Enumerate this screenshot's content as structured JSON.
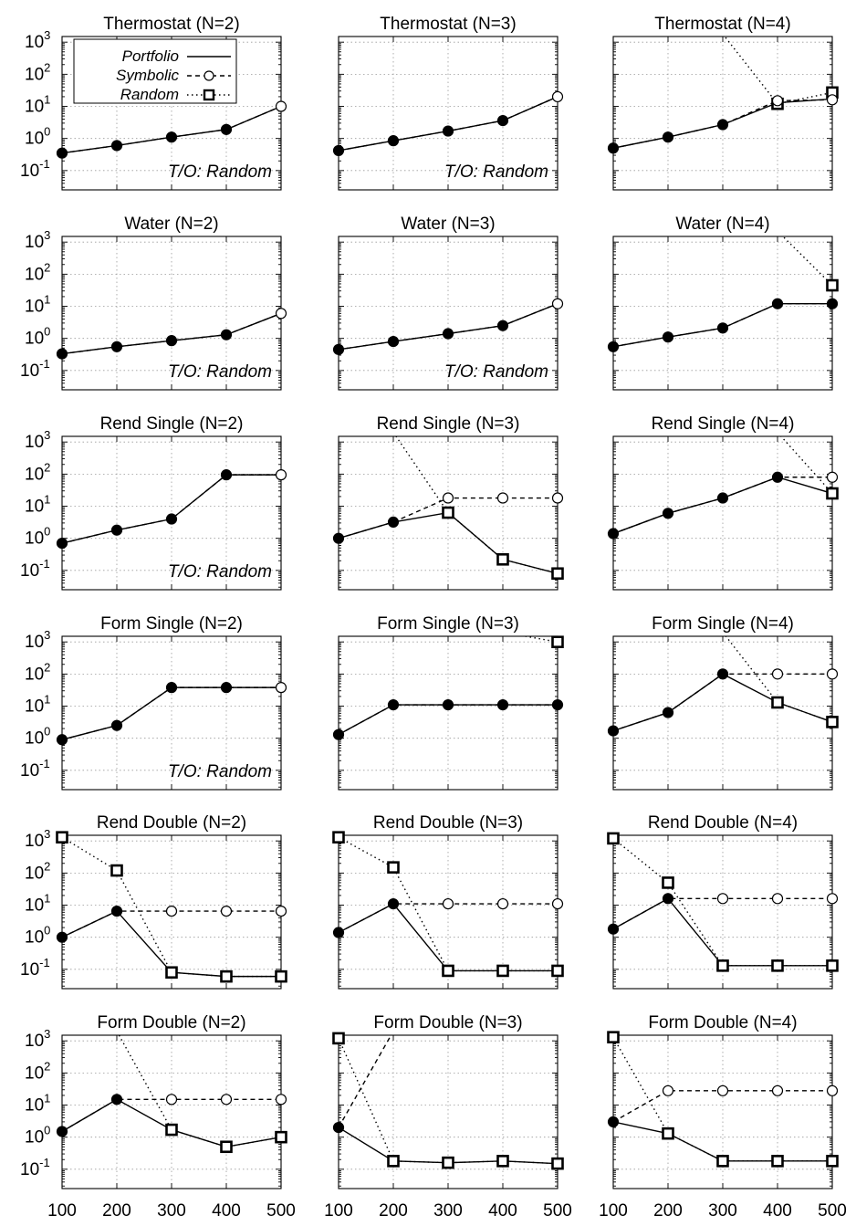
{
  "chart_data": {
    "type": "line",
    "y_scale": "log",
    "ylim": [
      0.025,
      1500
    ],
    "yticks": [
      0.1,
      1,
      10,
      100,
      1000
    ],
    "ytick_labels": [
      {
        "base": "10",
        "exp": "-1"
      },
      {
        "base": "10",
        "exp": "0"
      },
      {
        "base": "10",
        "exp": "1"
      },
      {
        "base": "10",
        "exp": "2"
      },
      {
        "base": "10",
        "exp": "3"
      }
    ],
    "x": [
      100,
      200,
      300,
      400,
      500
    ],
    "xtick_labels": [
      "100",
      "200",
      "300",
      "400",
      "500"
    ],
    "grid": true,
    "legend": {
      "placement": "top-left of first panel",
      "entries": [
        {
          "name": "Portfolio",
          "line": "solid",
          "marker": "none"
        },
        {
          "name": "Symbolic",
          "line": "dashed",
          "marker": "open circle"
        },
        {
          "name": "Random",
          "line": "dotted",
          "marker": "open square"
        }
      ]
    },
    "panels": [
      {
        "title": "Thermostat (N=2)",
        "note": "T/O: Random",
        "portfolio": [
          0.35,
          0.6,
          1.1,
          1.9,
          10
        ],
        "symbolic": [
          0.35,
          0.6,
          1.1,
          1.9,
          10
        ],
        "random": [
          null,
          null,
          null,
          null,
          null
        ]
      },
      {
        "title": "Thermostat (N=3)",
        "note": "T/O: Random",
        "portfolio": [
          0.42,
          0.85,
          1.7,
          3.6,
          20
        ],
        "symbolic": [
          0.42,
          0.85,
          1.7,
          3.6,
          20
        ],
        "random": [
          null,
          null,
          null,
          null,
          null
        ]
      },
      {
        "title": "Thermostat (N=4)",
        "note": "",
        "portfolio": [
          0.5,
          1.1,
          2.7,
          13,
          17
        ],
        "symbolic": [
          0.5,
          1.1,
          2.7,
          15,
          16
        ],
        "random": [
          null,
          null,
          1800,
          12,
          27
        ]
      },
      {
        "title": "Water (N=2)",
        "note": "T/O: Random",
        "portfolio": [
          0.33,
          0.55,
          0.85,
          1.3,
          6
        ],
        "symbolic": [
          0.33,
          0.55,
          0.85,
          1.3,
          6
        ],
        "random": [
          null,
          null,
          null,
          null,
          null
        ]
      },
      {
        "title": "Water (N=3)",
        "note": "T/O: Random",
        "portfolio": [
          0.45,
          0.8,
          1.4,
          2.5,
          12
        ],
        "symbolic": [
          0.45,
          0.8,
          1.4,
          2.5,
          12
        ],
        "random": [
          null,
          null,
          null,
          null,
          null
        ]
      },
      {
        "title": "Water (N=4)",
        "note": "",
        "portfolio": [
          0.55,
          1.1,
          2.1,
          12,
          12
        ],
        "symbolic": [
          0.55,
          1.1,
          2.1,
          12,
          12
        ],
        "random": [
          null,
          null,
          null,
          2200,
          45
        ]
      },
      {
        "title": "Rend Single (N=2)",
        "note": "T/O: Random",
        "portfolio": [
          0.7,
          1.8,
          4,
          95,
          95
        ],
        "symbolic": [
          0.7,
          1.8,
          4,
          95,
          95
        ],
        "random": [
          null,
          null,
          null,
          null,
          null
        ]
      },
      {
        "title": "Rend Single (N=3)",
        "note": "",
        "portfolio": [
          1,
          3.2,
          6.3,
          0.22,
          0.08
        ],
        "symbolic": [
          1,
          3.2,
          18,
          18,
          18
        ],
        "random": [
          null,
          2000,
          6.3,
          0.22,
          0.08
        ]
      },
      {
        "title": "Rend Single (N=4)",
        "note": "",
        "portfolio": [
          1.4,
          6,
          18,
          80,
          25
        ],
        "symbolic": [
          1.4,
          6,
          18,
          80,
          80
        ],
        "random": [
          null,
          null,
          null,
          2000,
          25
        ]
      },
      {
        "title": "Form Single (N=2)",
        "note": "T/O: Random",
        "portfolio": [
          0.9,
          2.5,
          38,
          38,
          38
        ],
        "symbolic": [
          0.9,
          2.5,
          38,
          38,
          38
        ],
        "random": [
          null,
          null,
          null,
          null,
          null
        ]
      },
      {
        "title": "Form Single (N=3)",
        "note": "",
        "portfolio": [
          1.3,
          11,
          11,
          11,
          11
        ],
        "symbolic": [
          1.3,
          11,
          11,
          11,
          11
        ],
        "random": [
          null,
          null,
          null,
          2000,
          1000
        ]
      },
      {
        "title": "Form Single (N=4)",
        "note": "",
        "portfolio": [
          1.7,
          6.3,
          100,
          13,
          3.2
        ],
        "symbolic": [
          1.7,
          6.3,
          100,
          100,
          100
        ],
        "random": [
          null,
          null,
          2000,
          13,
          3.2
        ]
      },
      {
        "title": "Rend Double (N=2)",
        "note": "",
        "portfolio": [
          1,
          6.5,
          0.08,
          0.06,
          0.06
        ],
        "symbolic": [
          1,
          6.5,
          6.5,
          6.5,
          6.5
        ],
        "random": [
          1300,
          120,
          0.08,
          0.06,
          0.06
        ]
      },
      {
        "title": "Rend Double (N=3)",
        "note": "",
        "portfolio": [
          1.4,
          11,
          0.09,
          0.09,
          0.09
        ],
        "symbolic": [
          1.4,
          11,
          11,
          11,
          11
        ],
        "random": [
          1300,
          150,
          0.09,
          0.09,
          0.09
        ]
      },
      {
        "title": "Rend Double (N=4)",
        "note": "",
        "portfolio": [
          1.8,
          16,
          0.13,
          0.13,
          0.13
        ],
        "symbolic": [
          1.8,
          16,
          16,
          16,
          16
        ],
        "random": [
          1200,
          50,
          0.13,
          0.13,
          0.13
        ]
      },
      {
        "title": "Form Double (N=2)",
        "note": "",
        "portfolio": [
          1.5,
          15,
          1.7,
          0.5,
          1
        ],
        "symbolic": [
          1.5,
          15,
          15,
          15,
          15
        ],
        "random": [
          null,
          2000,
          1.7,
          0.5,
          1
        ]
      },
      {
        "title": "Form Double (N=3)",
        "note": "",
        "portfolio": [
          2,
          0.18,
          0.16,
          0.18,
          0.15
        ],
        "symbolic": [
          2,
          2000,
          null,
          null,
          null
        ],
        "random": [
          1200,
          0.18,
          0.16,
          0.18,
          0.15
        ]
      },
      {
        "title": "Form Double (N=4)",
        "note": "",
        "portfolio": [
          3,
          1.3,
          0.18,
          0.18,
          0.18
        ],
        "symbolic": [
          3,
          28,
          28,
          28,
          28
        ],
        "random": [
          1300,
          1.3,
          0.18,
          0.18,
          0.18
        ]
      }
    ]
  }
}
